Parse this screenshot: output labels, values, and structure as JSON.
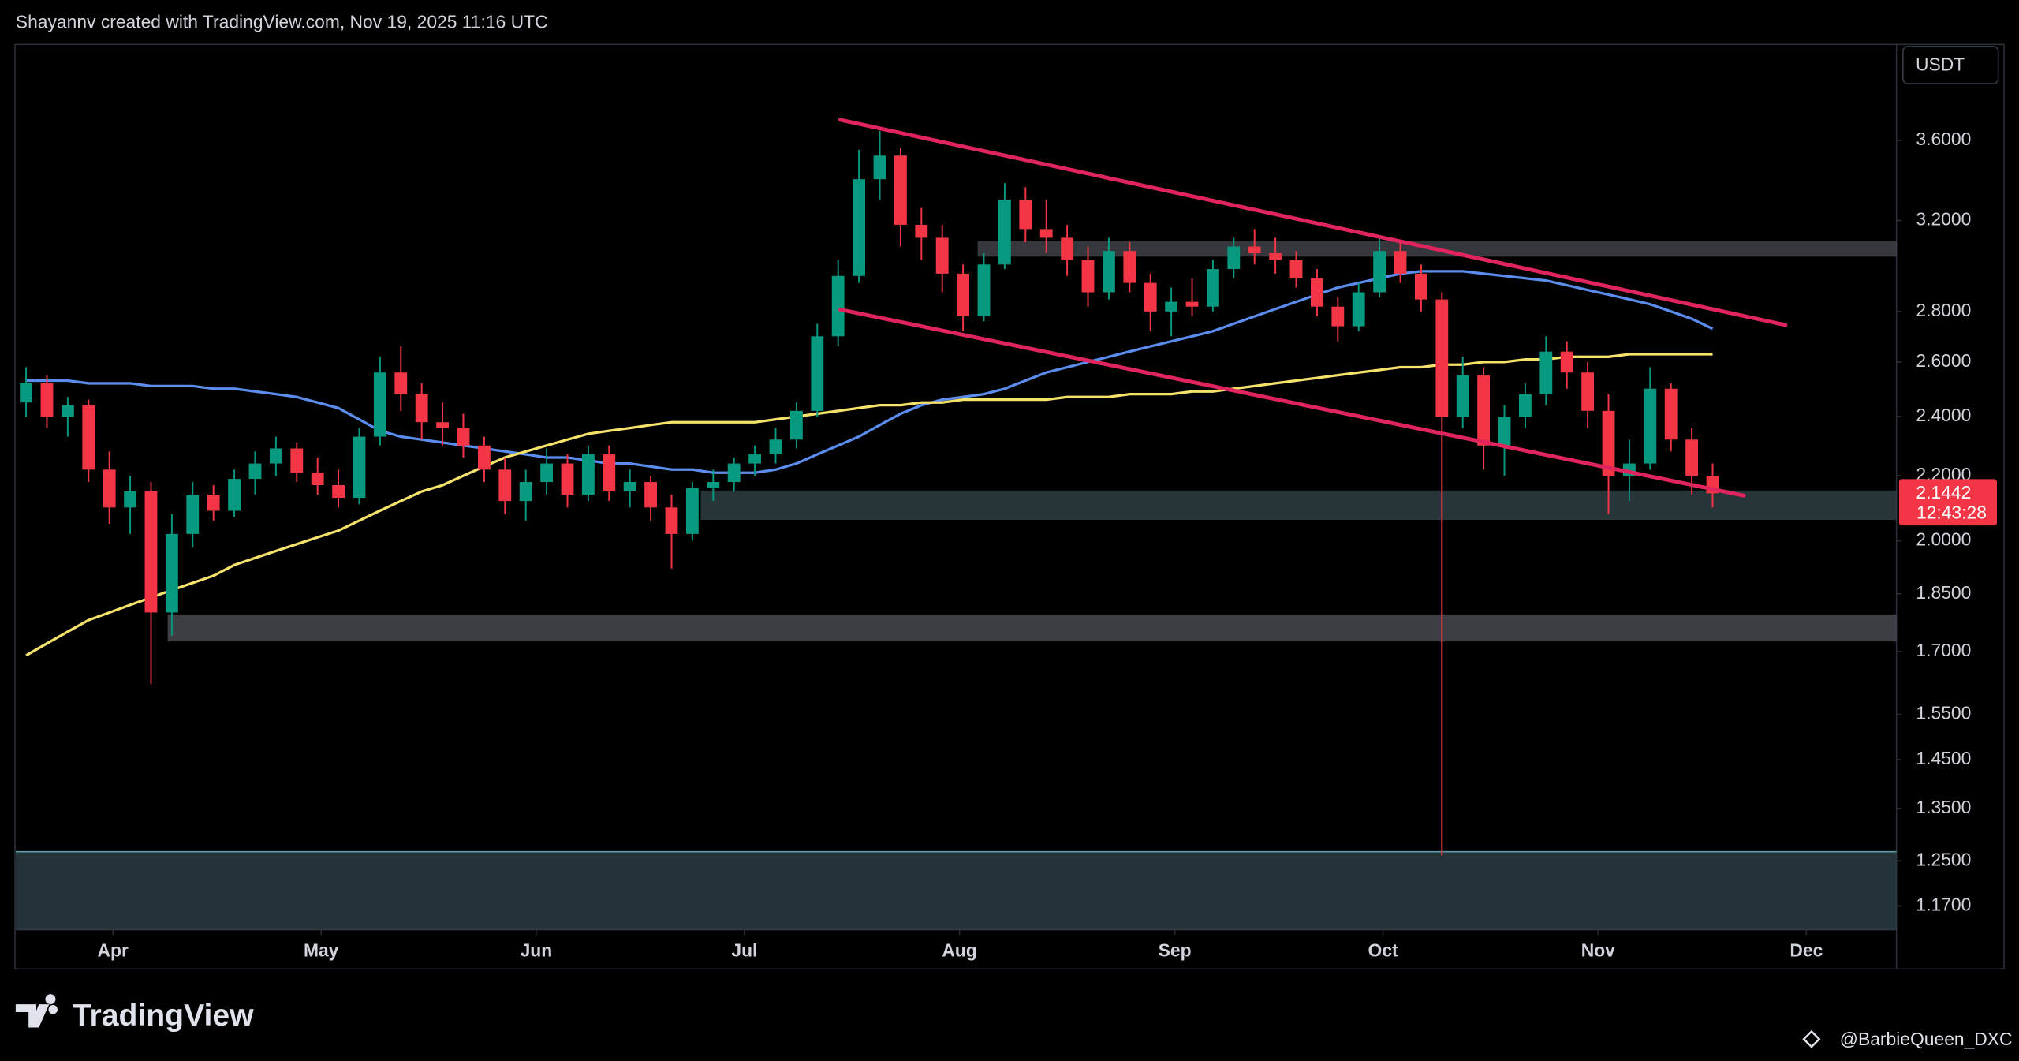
{
  "chart_data": {
    "type": "candlestick",
    "header": "Shayannv created with TradingView.com, Nov 19, 2025 11:16 UTC",
    "currency": "USDT",
    "brand": "TradingView",
    "watermark": "@BarbieQueen_DXC",
    "countdown": "12:43:28",
    "log_scale": true,
    "up_color": "#089981",
    "down_color": "#f23645",
    "xlim": [
      0,
      90.33
    ],
    "ylim": [
      1.13,
      4.14
    ],
    "xticks": [
      {
        "value": 4.67,
        "label": "Apr"
      },
      {
        "value": 14.67,
        "label": "May"
      },
      {
        "value": 25,
        "label": "Jun"
      },
      {
        "value": 35,
        "label": "Jul"
      },
      {
        "value": 45.33,
        "label": "Aug"
      },
      {
        "value": 55.67,
        "label": "Sep"
      },
      {
        "value": 65.67,
        "label": "Oct"
      },
      {
        "value": 76,
        "label": "Nov"
      },
      {
        "value": 86,
        "label": "Dec"
      }
    ],
    "yticks": [
      {
        "value": 3.6,
        "label": "3.6000"
      },
      {
        "value": 3.2,
        "label": "3.2000"
      },
      {
        "value": 2.8,
        "label": "2.8000"
      },
      {
        "value": 2.6,
        "label": "2.6000"
      },
      {
        "value": 2.4,
        "label": "2.4000"
      },
      {
        "value": 2.2,
        "label": "2.2000"
      },
      {
        "value": 2.0,
        "label": "2.0000"
      },
      {
        "value": 1.85,
        "label": "1.8500"
      },
      {
        "value": 1.7,
        "label": "1.7000"
      },
      {
        "value": 1.55,
        "label": "1.5500"
      },
      {
        "value": 1.45,
        "label": "1.4500"
      },
      {
        "value": 1.35,
        "label": "1.3500"
      },
      {
        "value": 1.25,
        "label": "1.2500"
      },
      {
        "value": 1.17,
        "label": "1.1700"
      }
    ],
    "open": [
      2.45,
      2.52,
      2.4,
      2.44,
      2.22,
      2.1,
      2.15,
      1.8,
      2.02,
      2.14,
      2.09,
      2.19,
      2.24,
      2.29,
      2.21,
      2.17,
      2.13,
      2.33,
      2.56,
      2.48,
      2.38,
      2.36,
      2.3,
      2.22,
      2.12,
      2.18,
      2.24,
      2.14,
      2.27,
      2.15,
      2.18,
      2.1,
      2.02,
      2.16,
      2.18,
      2.24,
      2.27,
      2.32,
      2.42,
      2.7,
      2.95,
      3.4,
      3.52,
      3.18,
      3.12,
      2.96,
      2.78,
      3.0,
      3.3,
      3.16,
      3.12,
      3.02,
      2.88,
      3.06,
      2.92,
      2.8,
      2.84,
      2.82,
      2.98,
      3.08,
      3.05,
      3.02,
      2.94,
      2.82,
      2.74,
      2.88,
      3.06,
      2.96,
      2.85,
      2.4,
      2.55,
      2.3,
      2.4,
      2.48,
      2.64,
      2.56,
      2.42,
      2.2,
      2.24,
      2.5,
      2.32,
      2.2
    ],
    "high": [
      2.58,
      2.55,
      2.47,
      2.46,
      2.28,
      2.2,
      2.18,
      2.08,
      2.18,
      2.17,
      2.22,
      2.28,
      2.33,
      2.31,
      2.26,
      2.22,
      2.36,
      2.62,
      2.66,
      2.52,
      2.45,
      2.41,
      2.33,
      2.26,
      2.22,
      2.29,
      2.27,
      2.3,
      2.3,
      2.22,
      2.2,
      2.14,
      2.18,
      2.22,
      2.26,
      2.3,
      2.36,
      2.45,
      2.75,
      3.02,
      3.55,
      3.65,
      3.56,
      3.26,
      3.18,
      3.0,
      3.05,
      3.38,
      3.36,
      3.3,
      3.18,
      3.08,
      3.12,
      3.1,
      2.96,
      2.9,
      2.94,
      3.02,
      3.12,
      3.16,
      3.12,
      3.06,
      2.98,
      2.86,
      2.92,
      3.12,
      3.1,
      3.0,
      2.88,
      2.62,
      2.58,
      2.44,
      2.52,
      2.7,
      2.68,
      2.6,
      2.48,
      2.32,
      2.58,
      2.52,
      2.36,
      2.24
    ],
    "low": [
      2.4,
      2.36,
      2.33,
      2.18,
      2.05,
      2.02,
      1.62,
      1.74,
      1.98,
      2.06,
      2.07,
      2.14,
      2.2,
      2.18,
      2.14,
      2.1,
      2.11,
      2.3,
      2.42,
      2.32,
      2.3,
      2.26,
      2.18,
      2.08,
      2.06,
      2.14,
      2.1,
      2.12,
      2.12,
      2.1,
      2.06,
      1.92,
      2.0,
      2.12,
      2.15,
      2.2,
      2.24,
      2.29,
      2.4,
      2.66,
      2.92,
      3.3,
      3.08,
      3.02,
      2.88,
      2.72,
      2.76,
      2.98,
      3.1,
      3.05,
      2.95,
      2.82,
      2.85,
      2.88,
      2.72,
      2.7,
      2.78,
      2.8,
      2.94,
      3.0,
      2.96,
      2.9,
      2.78,
      2.68,
      2.72,
      2.86,
      2.92,
      2.8,
      1.26,
      2.36,
      2.22,
      2.2,
      2.36,
      2.44,
      2.5,
      2.36,
      2.08,
      2.12,
      2.22,
      2.28,
      2.14,
      2.1
    ],
    "close": [
      2.52,
      2.4,
      2.44,
      2.22,
      2.1,
      2.15,
      1.8,
      2.02,
      2.14,
      2.09,
      2.19,
      2.24,
      2.29,
      2.21,
      2.17,
      2.13,
      2.33,
      2.56,
      2.48,
      2.38,
      2.36,
      2.3,
      2.22,
      2.12,
      2.18,
      2.24,
      2.14,
      2.27,
      2.15,
      2.18,
      2.1,
      2.02,
      2.16,
      2.18,
      2.24,
      2.27,
      2.32,
      2.42,
      2.7,
      2.95,
      3.4,
      3.52,
      3.18,
      3.12,
      2.96,
      2.78,
      3.0,
      3.3,
      3.16,
      3.12,
      3.02,
      2.88,
      3.06,
      2.92,
      2.8,
      2.84,
      2.82,
      2.98,
      3.08,
      3.05,
      3.02,
      2.94,
      2.82,
      2.74,
      2.88,
      3.06,
      2.96,
      2.85,
      2.4,
      2.55,
      2.3,
      2.4,
      2.48,
      2.64,
      2.56,
      2.42,
      2.2,
      2.24,
      2.5,
      2.32,
      2.2,
      2.1442
    ],
    "moving_averages": [
      {
        "color": "#5b8def",
        "values": [
          2.53,
          2.53,
          2.53,
          2.52,
          2.52,
          2.52,
          2.51,
          2.51,
          2.51,
          2.5,
          2.5,
          2.49,
          2.48,
          2.47,
          2.45,
          2.43,
          2.39,
          2.35,
          2.33,
          2.32,
          2.31,
          2.3,
          2.29,
          2.28,
          2.27,
          2.26,
          2.26,
          2.25,
          2.24,
          2.24,
          2.23,
          2.22,
          2.22,
          2.21,
          2.21,
          2.21,
          2.22,
          2.24,
          2.27,
          2.3,
          2.33,
          2.37,
          2.41,
          2.44,
          2.46,
          2.47,
          2.48,
          2.5,
          2.53,
          2.56,
          2.58,
          2.6,
          2.62,
          2.64,
          2.66,
          2.68,
          2.7,
          2.72,
          2.75,
          2.78,
          2.81,
          2.84,
          2.87,
          2.9,
          2.92,
          2.94,
          2.96,
          2.97,
          2.97,
          2.97,
          2.96,
          2.95,
          2.94,
          2.93,
          2.91,
          2.89,
          2.87,
          2.85,
          2.83,
          2.8,
          2.77,
          2.73
        ]
      },
      {
        "color": "#f5e26b",
        "values": [
          1.69,
          1.72,
          1.75,
          1.78,
          1.8,
          1.82,
          1.84,
          1.86,
          1.88,
          1.9,
          1.93,
          1.95,
          1.97,
          1.99,
          2.01,
          2.03,
          2.06,
          2.09,
          2.12,
          2.15,
          2.17,
          2.2,
          2.23,
          2.26,
          2.28,
          2.3,
          2.32,
          2.34,
          2.35,
          2.36,
          2.37,
          2.38,
          2.38,
          2.38,
          2.38,
          2.38,
          2.39,
          2.4,
          2.41,
          2.42,
          2.43,
          2.44,
          2.44,
          2.45,
          2.45,
          2.46,
          2.46,
          2.46,
          2.46,
          2.46,
          2.47,
          2.47,
          2.47,
          2.48,
          2.48,
          2.48,
          2.49,
          2.49,
          2.5,
          2.51,
          2.52,
          2.53,
          2.54,
          2.55,
          2.56,
          2.57,
          2.58,
          2.58,
          2.59,
          2.59,
          2.6,
          2.6,
          2.61,
          2.61,
          2.62,
          2.62,
          2.62,
          2.63,
          2.63,
          2.63,
          2.63,
          2.63
        ]
      }
    ],
    "zones": [
      {
        "from": 3.035,
        "to": 3.105,
        "start": 46.2,
        "color": "rgba(120,123,134,0.45)"
      },
      {
        "from": 2.062,
        "to": 2.153,
        "start": 32.9,
        "color": "rgba(78,104,112,0.5)"
      },
      {
        "from": 1.725,
        "to": 1.795,
        "start": 7.3,
        "color": "rgba(120,123,134,0.5)"
      },
      {
        "from": 1.13,
        "to": 1.267,
        "start": 0,
        "color": "rgba(64,92,102,0.55)"
      }
    ],
    "trendlines": [
      {
        "start": [
          39.6,
          3.71
        ],
        "end": [
          85.0,
          2.745
        ],
        "color": "#e0245e"
      },
      {
        "start": [
          39.6,
          2.808
        ],
        "end": [
          83.0,
          2.137
        ],
        "color": "#e0245e"
      }
    ]
  }
}
